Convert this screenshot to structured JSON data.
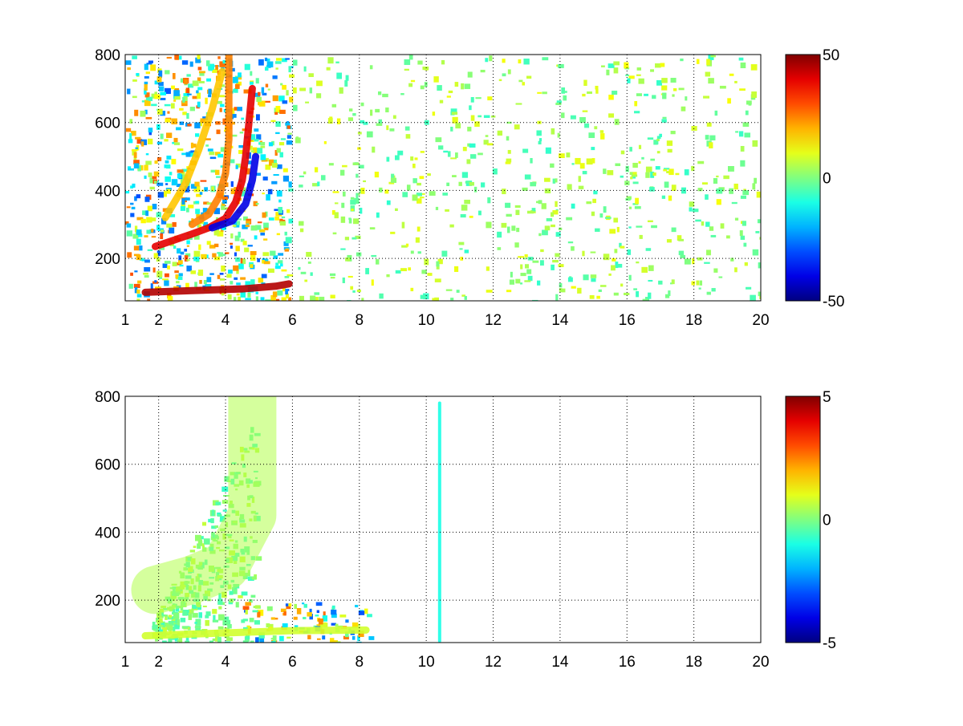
{
  "chart_data": [
    {
      "type": "heatmap",
      "x_ticks": [
        1,
        2,
        4,
        6,
        8,
        10,
        12,
        14,
        16,
        18,
        20
      ],
      "y_ticks": [
        200,
        400,
        600,
        800
      ],
      "xlim": [
        1,
        20
      ],
      "ylim": [
        75,
        800
      ],
      "grid": true,
      "colormap": "jet",
      "colorbar": {
        "ticks": [
          50,
          0,
          -50
        ],
        "range": [
          -50,
          50
        ]
      },
      "features": [
        {
          "name": "arc",
          "points": [
            [
              1.9,
              235
            ],
            [
              2.5,
              255
            ],
            [
              3.0,
              272
            ],
            [
              3.5,
              290
            ],
            [
              4.0,
              318
            ],
            [
              4.3,
              365
            ],
            [
              4.5,
              430
            ],
            [
              4.6,
              500
            ],
            [
              4.7,
              600
            ],
            [
              4.8,
              700
            ]
          ],
          "value": 40
        },
        {
          "name": "arc",
          "points": [
            [
              3.0,
              300
            ],
            [
              3.5,
              330
            ],
            [
              3.8,
              380
            ],
            [
              4.0,
              450
            ],
            [
              4.1,
              550
            ],
            [
              4.1,
              700
            ],
            [
              4.1,
              800
            ]
          ],
          "value": 25
        },
        {
          "name": "arc",
          "points": [
            [
              2.2,
              320
            ],
            [
              2.8,
              420
            ],
            [
              3.2,
              520
            ],
            [
              3.6,
              640
            ],
            [
              3.9,
              750
            ]
          ],
          "value": 18
        },
        {
          "name": "arc",
          "points": [
            [
              3.6,
              290
            ],
            [
              4.2,
              310
            ],
            [
              4.6,
              360
            ],
            [
              4.8,
              430
            ],
            [
              4.9,
              500
            ]
          ],
          "value": -40
        },
        {
          "name": "band",
          "points": [
            [
              1.6,
              100
            ],
            [
              3.0,
              105
            ],
            [
              4.5,
              110
            ],
            [
              5.5,
              118
            ],
            [
              5.9,
              125
            ]
          ],
          "value": 45
        }
      ]
    },
    {
      "type": "heatmap",
      "x_ticks": [
        1,
        2,
        4,
        6,
        8,
        10,
        12,
        14,
        16,
        18,
        20
      ],
      "y_ticks": [
        200,
        400,
        600,
        800
      ],
      "xlim": [
        1,
        20
      ],
      "ylim": [
        75,
        800
      ],
      "grid": true,
      "colormap": "jet",
      "colorbar": {
        "ticks": [
          5,
          0,
          -5
        ],
        "range": [
          -5,
          5
        ]
      },
      "features": [
        {
          "name": "region",
          "points": [
            [
              1.9,
              230
            ],
            [
              3.0,
              260
            ],
            [
              4.0,
              300
            ],
            [
              4.8,
              450
            ],
            [
              4.8,
              800
            ]
          ],
          "value": 0.5
        },
        {
          "name": "band",
          "points": [
            [
              1.6,
              95
            ],
            [
              3.0,
              100
            ],
            [
              4.5,
              105
            ],
            [
              6.0,
              110
            ],
            [
              8.2,
              112
            ]
          ],
          "value": 0.8
        },
        {
          "name": "stripe",
          "points": [
            [
              10.4,
              80
            ],
            [
              10.4,
              780
            ]
          ],
          "value": -1
        }
      ]
    }
  ]
}
